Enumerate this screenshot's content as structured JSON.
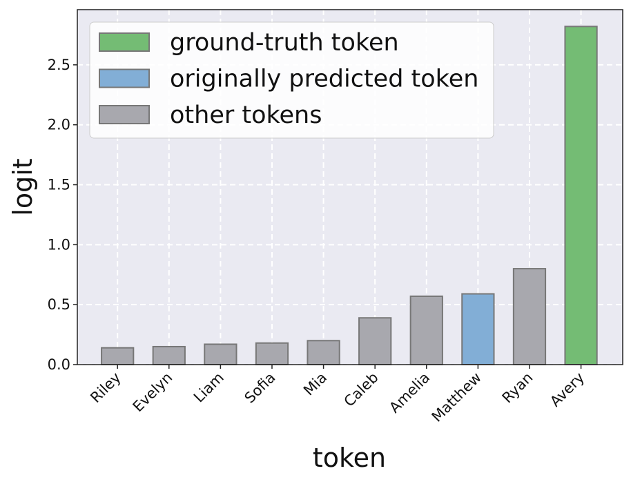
{
  "chart_data": {
    "type": "bar",
    "x_label": "token",
    "y_label": "logit",
    "categories": [
      "Riley",
      "Evelyn",
      "Liam",
      "Sofia",
      "Mia",
      "Caleb",
      "Amelia",
      "Matthew",
      "Ryan",
      "Avery"
    ],
    "values": [
      0.14,
      0.15,
      0.17,
      0.18,
      0.2,
      0.39,
      0.57,
      0.59,
      0.8,
      2.82
    ],
    "bar_colors": [
      "#a8a8ae",
      "#a8a8ae",
      "#a8a8ae",
      "#a8a8ae",
      "#a8a8ae",
      "#a8a8ae",
      "#a8a8ae",
      "#82aed6",
      "#a8a8ae",
      "#74bc74"
    ],
    "legend": [
      {
        "label": "ground-truth token",
        "color": "#74bc74"
      },
      {
        "label": "originally predicted token",
        "color": "#82aed6"
      },
      {
        "label": "other tokens",
        "color": "#a8a8ae"
      }
    ],
    "legend_position": "upper left",
    "ylim": [
      0,
      2.96
    ],
    "yticks": [
      {
        "value": 0,
        "label": "0.0"
      },
      {
        "value": 0.5,
        "label": "0.5"
      },
      {
        "value": 1,
        "label": "1.0"
      },
      {
        "value": 1.5,
        "label": "1.5"
      },
      {
        "value": 2,
        "label": "2.0"
      },
      {
        "value": 2.5,
        "label": "2.5"
      }
    ],
    "grid": true
  }
}
